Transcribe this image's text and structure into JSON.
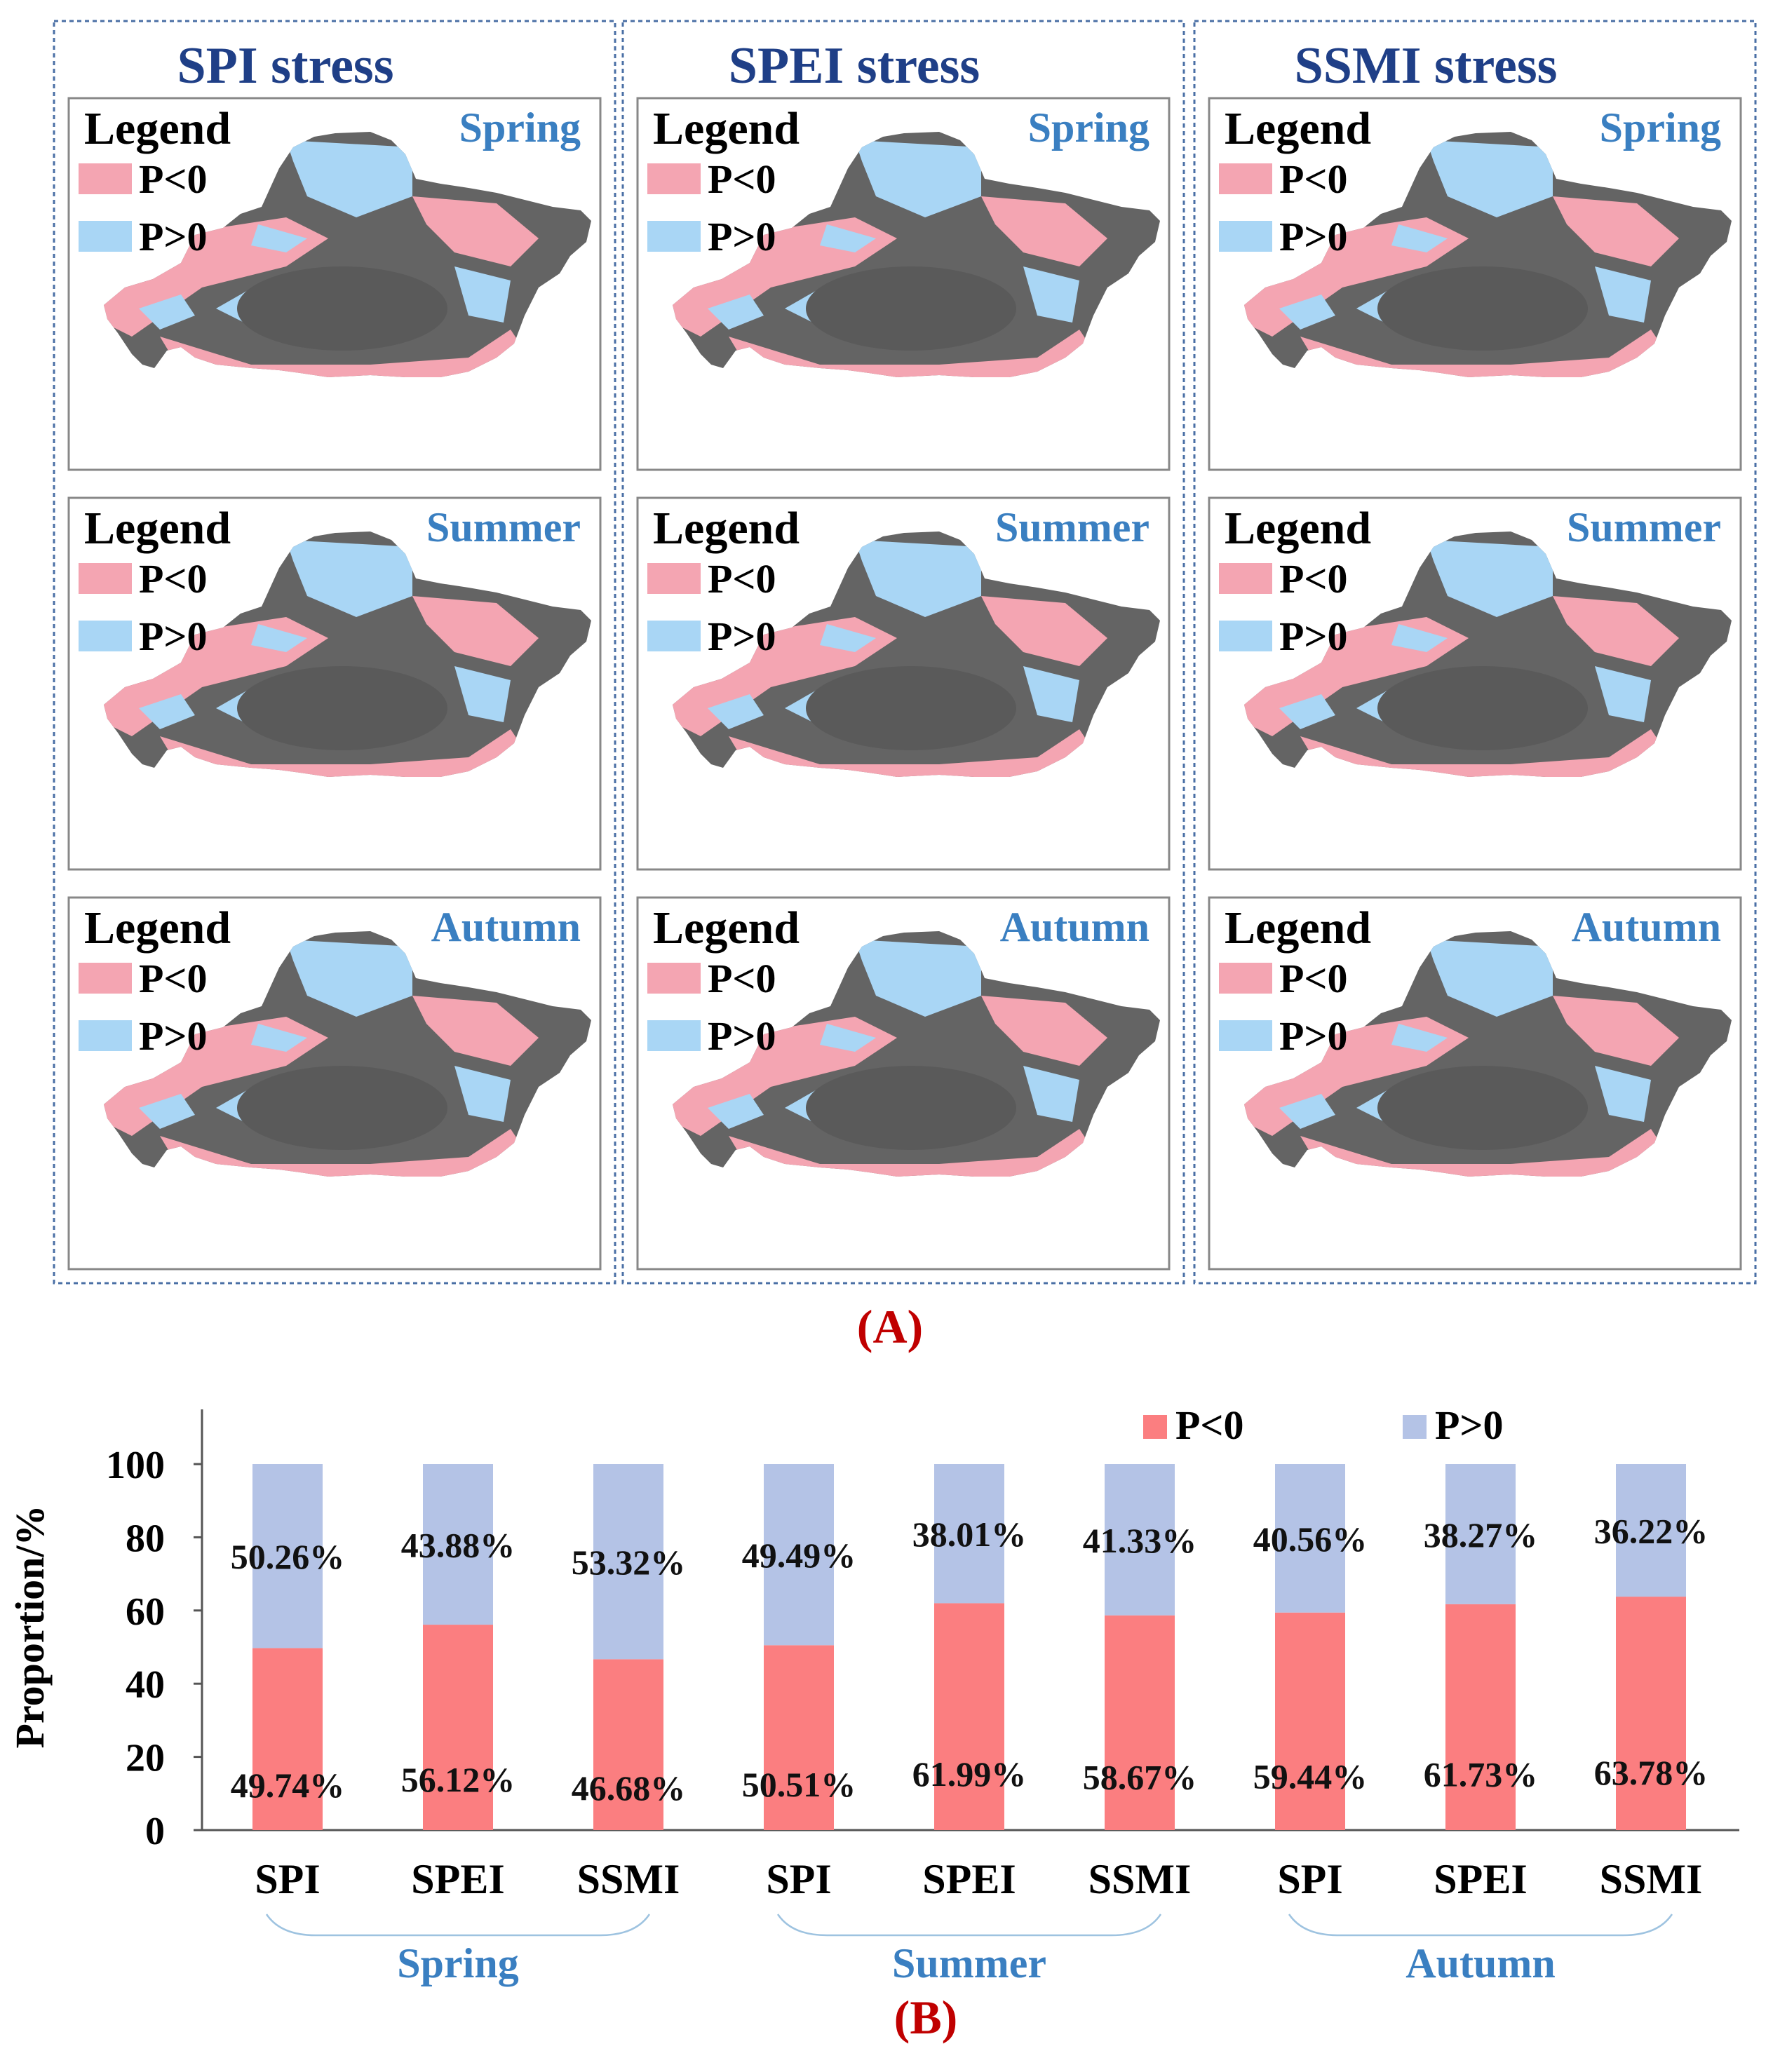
{
  "panel_a": {
    "label": "(A)",
    "columns": [
      {
        "title": "SPI stress"
      },
      {
        "title": "SPEI stress"
      },
      {
        "title": "SSMI stress"
      }
    ],
    "seasons": [
      "Spring",
      "Summer",
      "Autumn"
    ],
    "legend": {
      "title": "Legend",
      "items": [
        {
          "label": "P<0",
          "color": "#f4a5b2"
        },
        {
          "label": "P>0",
          "color": "#a9d6f5"
        }
      ]
    },
    "map_base_color": "#646464"
  },
  "chart_data": {
    "type": "bar",
    "stacked": true,
    "label": "(B)",
    "ylabel": "Proportion/%",
    "ylim": [
      0,
      100
    ],
    "yticks": [
      0,
      20,
      40,
      60,
      80,
      100
    ],
    "categories": [
      "SPI",
      "SPEI",
      "SSMI",
      "SPI",
      "SPEI",
      "SSMI",
      "SPI",
      "SPEI",
      "SSMI"
    ],
    "groups": [
      {
        "name": "Spring",
        "span": [
          0,
          2
        ]
      },
      {
        "name": "Summer",
        "span": [
          3,
          5
        ]
      },
      {
        "name": "Autumn",
        "span": [
          6,
          8
        ]
      }
    ],
    "series": [
      {
        "name": "P<0",
        "color": "#fb7e80",
        "values": [
          49.74,
          56.12,
          46.68,
          50.51,
          61.99,
          58.67,
          59.44,
          61.73,
          63.78
        ],
        "labels": [
          "49.74%",
          "56.12%",
          "46.68%",
          "50.51%",
          "61.99%",
          "58.67%",
          "59.44%",
          "61.73%",
          "63.78%"
        ]
      },
      {
        "name": "P>0",
        "color": "#b4c3e6",
        "values": [
          50.26,
          43.88,
          53.32,
          49.49,
          38.01,
          41.33,
          40.56,
          38.27,
          36.22
        ],
        "labels": [
          "50.26%",
          "43.88%",
          "53.32%",
          "49.49%",
          "38.01%",
          "41.33%",
          "40.56%",
          "38.27%",
          "36.22%"
        ]
      }
    ],
    "legend_position": "top-right",
    "group_label_color": "#3a7fc1"
  }
}
